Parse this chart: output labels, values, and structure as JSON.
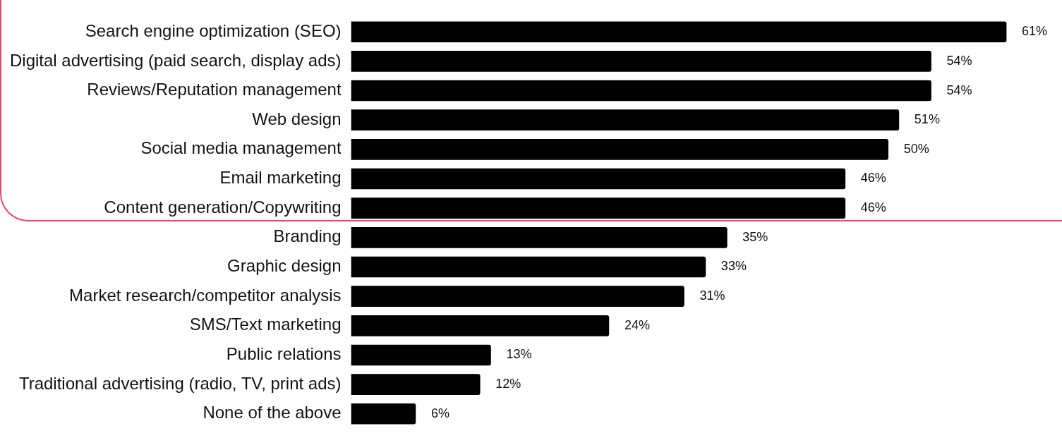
{
  "chart_data": {
    "type": "bar",
    "orientation": "horizontal",
    "categories": [
      "Search engine optimization (SEO)",
      "Digital advertising (paid search, display ads)",
      "Reviews/Reputation management",
      "Web design",
      "Social media management",
      "Email marketing",
      "Content generation/Copywriting",
      "Branding",
      "Graphic design",
      "Market research/competitor analysis",
      "SMS/Text marketing",
      "Public relations",
      "Traditional advertising (radio, TV, print ads)",
      "None of the above"
    ],
    "values": [
      61,
      54,
      54,
      51,
      50,
      46,
      46,
      35,
      33,
      31,
      24,
      13,
      12,
      6
    ],
    "value_labels": [
      "61%",
      "54%",
      "54%",
      "51%",
      "50%",
      "46%",
      "46%",
      "35%",
      "33%",
      "31%",
      "24%",
      "13%",
      "12%",
      "6%"
    ],
    "color": "#000000",
    "relative": false,
    "grid": false,
    "legend": false
  }
}
